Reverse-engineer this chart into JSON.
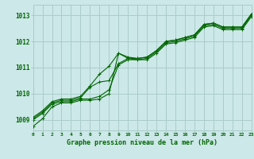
{
  "background_color": "#cce8e8",
  "grid_color": "#aacccc",
  "line_color": "#006600",
  "x_ticks": [
    0,
    1,
    2,
    3,
    4,
    5,
    6,
    7,
    8,
    9,
    10,
    11,
    12,
    13,
    14,
    15,
    16,
    17,
    18,
    19,
    20,
    21,
    22,
    23
  ],
  "ylim": [
    1008.6,
    1013.4
  ],
  "yticks": [
    1009,
    1010,
    1011,
    1012,
    1013
  ],
  "xlabel": "Graphe pression niveau de la mer (hPa)",
  "series": [
    [
      1008.75,
      1009.05,
      1009.5,
      1009.65,
      1009.65,
      1009.75,
      1009.75,
      1009.8,
      1010.0,
      1011.55,
      1011.35,
      1011.3,
      1011.3,
      1011.55,
      1011.9,
      1011.95,
      1012.05,
      1012.15,
      1012.55,
      1012.6,
      1012.45,
      1012.45,
      1012.45,
      1012.95
    ],
    [
      1009.0,
      1009.25,
      1009.6,
      1009.7,
      1009.7,
      1009.8,
      1009.8,
      1009.9,
      1010.15,
      1011.1,
      1011.3,
      1011.3,
      1011.35,
      1011.6,
      1011.95,
      1012.0,
      1012.1,
      1012.2,
      1012.6,
      1012.65,
      1012.5,
      1012.5,
      1012.5,
      1013.0
    ],
    [
      1009.05,
      1009.3,
      1009.65,
      1009.75,
      1009.75,
      1009.85,
      1010.25,
      1010.45,
      1010.5,
      1011.15,
      1011.35,
      1011.35,
      1011.4,
      1011.65,
      1012.0,
      1012.05,
      1012.15,
      1012.25,
      1012.65,
      1012.7,
      1012.55,
      1012.55,
      1012.55,
      1013.05
    ],
    [
      1009.1,
      1009.35,
      1009.7,
      1009.8,
      1009.8,
      1009.9,
      1010.3,
      1010.75,
      1011.05,
      1011.55,
      1011.4,
      1011.35,
      1011.4,
      1011.65,
      1012.0,
      1012.05,
      1012.15,
      1012.25,
      1012.65,
      1012.7,
      1012.55,
      1012.55,
      1012.55,
      1013.05
    ]
  ]
}
